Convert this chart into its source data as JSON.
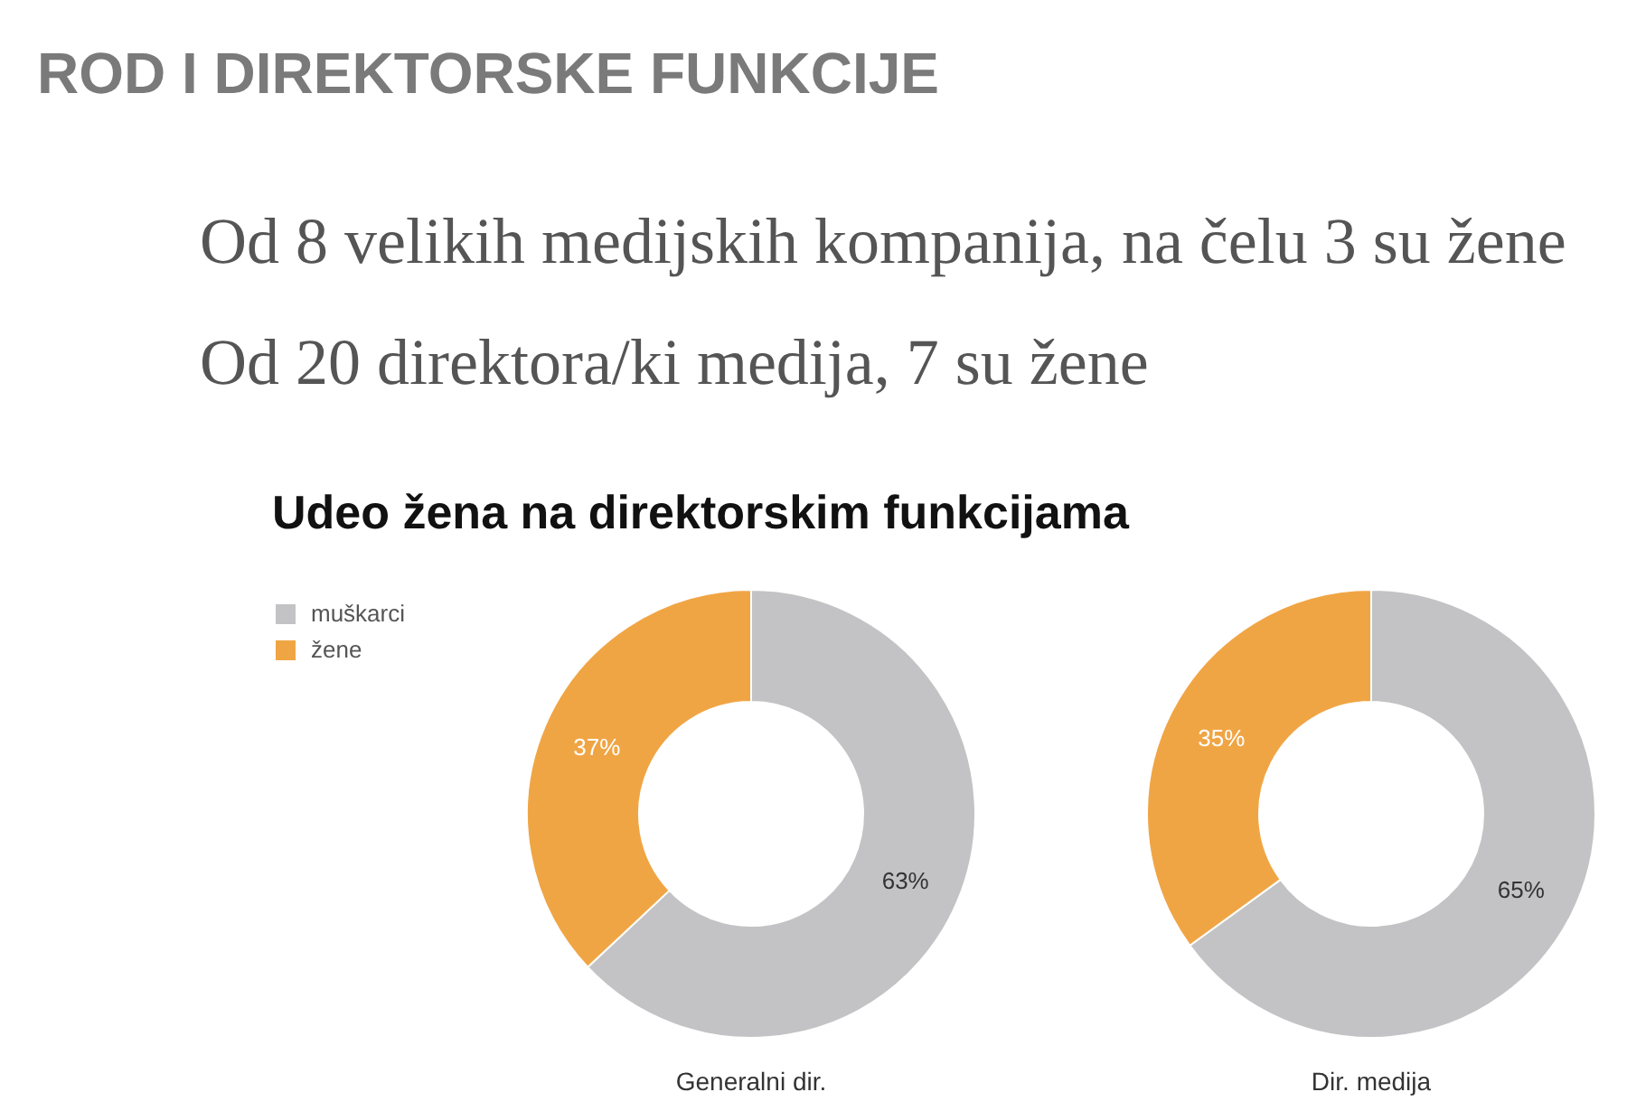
{
  "chart_data": [
    {
      "type": "donut",
      "title": "ROD I DIREKTORSKE FUNKCIJE",
      "subtitle": "Udeo žena na direktorskim funkcijama",
      "annotations": [
        "Od 8 velikih medijskih kompanija, na čelu 3 su žene",
        "Od 20 direktora/ki medija, 7 su žene"
      ],
      "xlabel": "Generalni dir.",
      "categories": [
        "muškarci",
        "žene"
      ],
      "values": [
        63,
        37
      ],
      "colors": [
        "#c3c3c5",
        "#f0a544"
      ],
      "value_labels": [
        "63%",
        "37%"
      ],
      "legend": "top left"
    },
    {
      "type": "donut",
      "xlabel": "Dir. medija",
      "categories": [
        null,
        null
      ],
      "values": [
        65,
        35
      ],
      "colors": [
        "#c3c3c5",
        "#f0a544"
      ],
      "value_labels": [
        "65%",
        "35%"
      ]
    }
  ]
}
